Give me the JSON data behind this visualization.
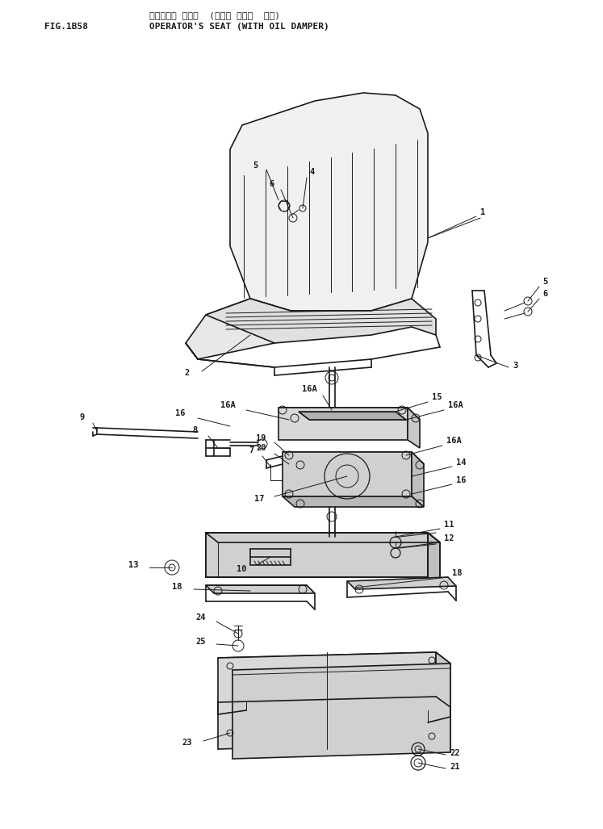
{
  "title_japanese": "オペレータ シート (オイル ダンパ サキ)",
  "title_english": "OPERATOR'S SEAT (WITH OIL DAMPER)",
  "fig_label": "FIG.1B58",
  "bg": "#ffffff",
  "lc": "#1a1a1a"
}
